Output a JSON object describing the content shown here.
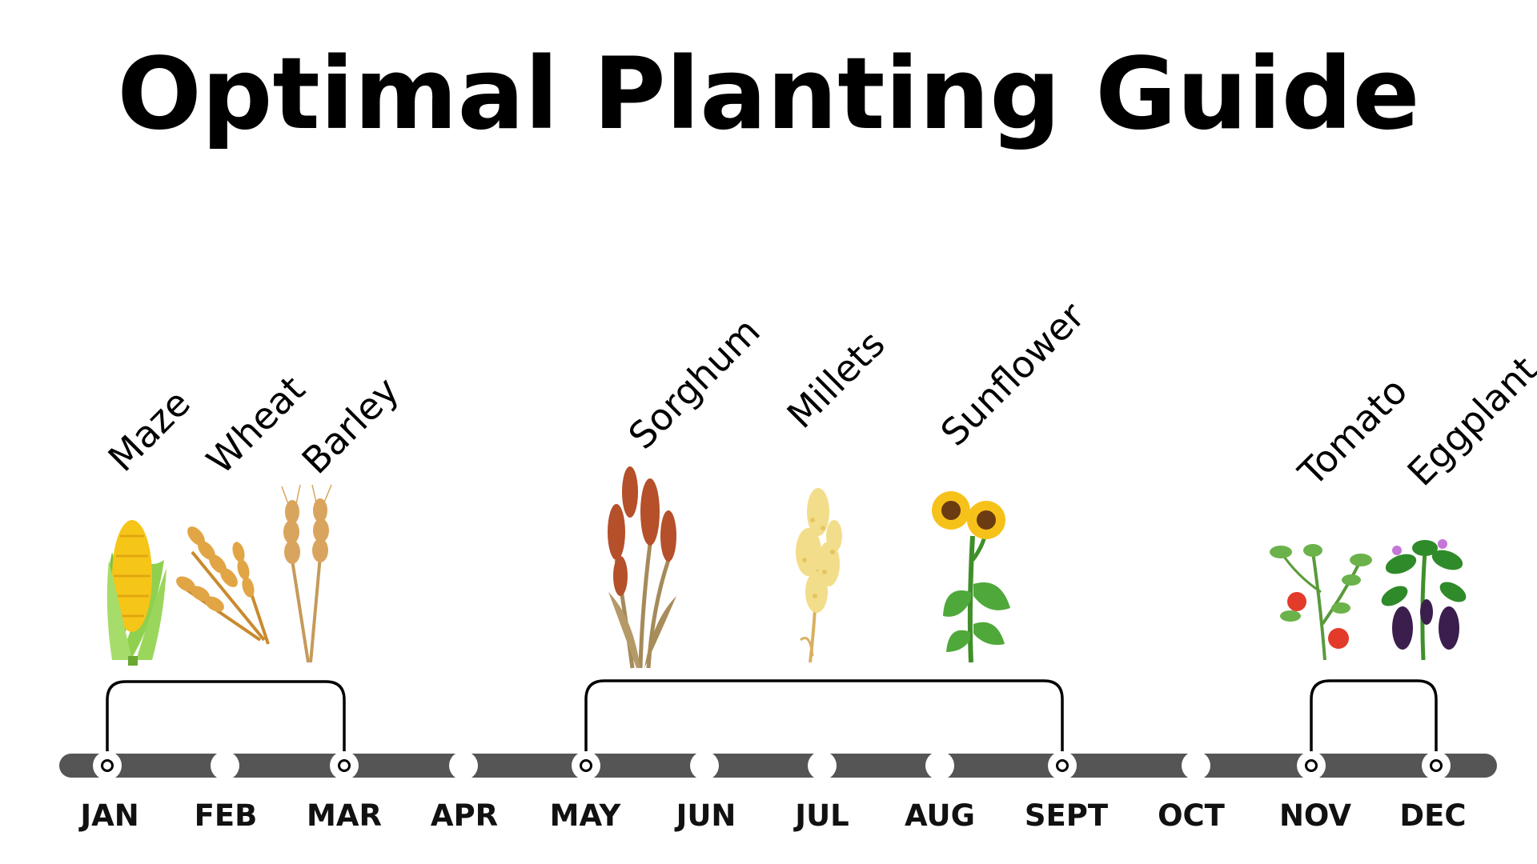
{
  "title": "Optimal Planting Guide",
  "colors": {
    "timeline_bar": "#555555",
    "marker_fill": "#ffffff",
    "marker_stroke": "#000000",
    "bracket": "#000000"
  },
  "months": [
    "JAN",
    "FEB",
    "MAR",
    "APR",
    "MAY",
    "JUN",
    "JUL",
    "AUG",
    "SEPT",
    "OCT",
    "NOV",
    "DEC"
  ],
  "crops": [
    {
      "name": "Maze",
      "icon": "corn-icon"
    },
    {
      "name": "Wheat",
      "icon": "wheat-icon"
    },
    {
      "name": "Barley",
      "icon": "barley-icon"
    },
    {
      "name": "Sorghum",
      "icon": "sorghum-icon"
    },
    {
      "name": "Millets",
      "icon": "millet-icon"
    },
    {
      "name": "Sunflower",
      "icon": "sunflower-icon"
    },
    {
      "name": "Tomato",
      "icon": "tomato-plant-icon"
    },
    {
      "name": "Eggplant",
      "icon": "eggplant-plant-icon"
    }
  ],
  "seasons": [
    {
      "start": "JAN",
      "end": "MAR",
      "crops": [
        "Maze",
        "Wheat",
        "Barley"
      ]
    },
    {
      "start": "MAY",
      "end": "SEPT",
      "crops": [
        "Sorghum",
        "Millets",
        "Sunflower"
      ]
    },
    {
      "start": "NOV",
      "end": "DEC",
      "crops": [
        "Tomato",
        "Eggplant"
      ]
    }
  ]
}
